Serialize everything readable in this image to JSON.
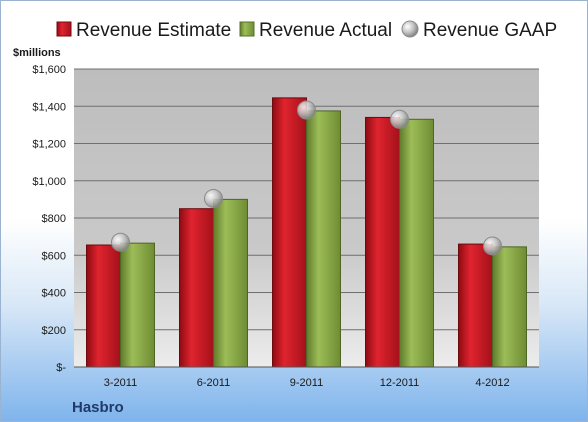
{
  "company": "Hasbro",
  "chart_data": {
    "type": "bar",
    "ylabel": "$millions",
    "ylim": [
      0,
      1600
    ],
    "ytick_labels": [
      "$-",
      "$200",
      "$400",
      "$600",
      "$800",
      "$1,000",
      "$1,200",
      "$1,400",
      "$1,600"
    ],
    "categories": [
      "3-2011",
      "6-2011",
      "9-2011",
      "12-2011",
      "4-2012"
    ],
    "grid": true,
    "legend_position": "top",
    "series": [
      {
        "name": "Revenue Estimate",
        "kind": "bar",
        "color": "#c8102e",
        "values": [
          655,
          850,
          1445,
          1340,
          660
        ]
      },
      {
        "name": "Revenue Actual",
        "kind": "bar",
        "color": "#8fb04a",
        "values": [
          665,
          900,
          1375,
          1330,
          645
        ]
      },
      {
        "name": "Revenue GAAP",
        "kind": "marker",
        "color": "#b8b8b8",
        "values": [
          670,
          905,
          1380,
          1330,
          650
        ]
      }
    ]
  }
}
